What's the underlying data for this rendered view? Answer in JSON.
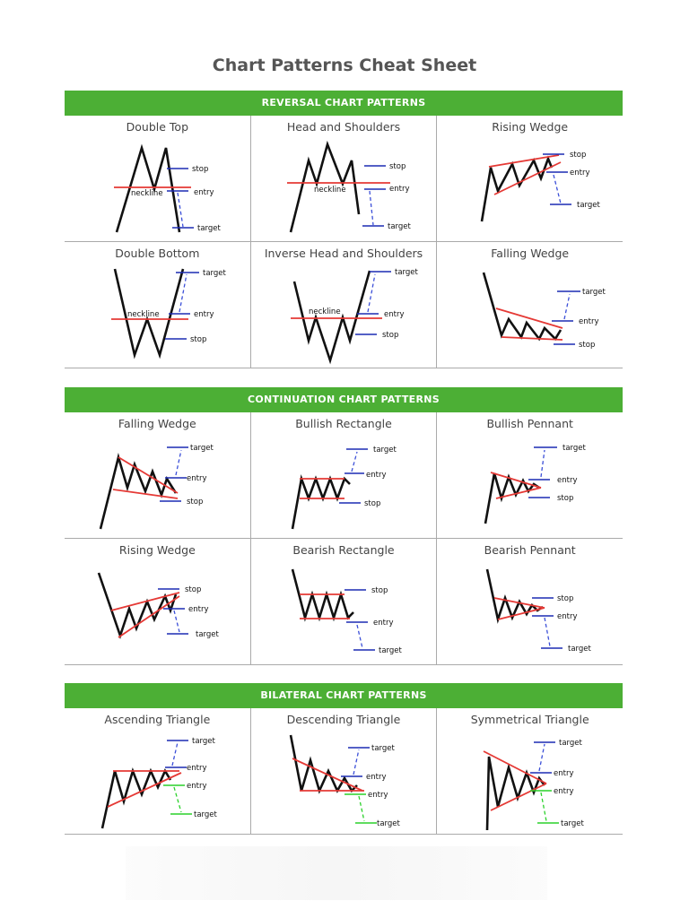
{
  "page": {
    "title": "Chart Patterns Cheat Sheet"
  },
  "sections": [
    {
      "banner": "REVERSAL CHART PATTERNS",
      "cells": [
        {
          "title": "Double Top",
          "labels": {
            "stop": "stop",
            "neckline": "neckline",
            "entry": "entry",
            "target": "target"
          }
        },
        {
          "title": "Head and Shoulders",
          "labels": {
            "stop": "stop",
            "neckline": "neckline",
            "entry": "entry",
            "target": "target"
          }
        },
        {
          "title": "Rising Wedge",
          "labels": {
            "stop": "stop",
            "entry": "entry",
            "target": "target"
          }
        },
        {
          "title": "Double Bottom",
          "labels": {
            "target": "target",
            "neckline": "neckline",
            "entry": "entry",
            "stop": "stop"
          }
        },
        {
          "title": "Inverse Head and Shoulders",
          "labels": {
            "target": "target",
            "neckline": "neckline",
            "entry": "entry",
            "stop": "stop"
          }
        },
        {
          "title": "Falling Wedge",
          "labels": {
            "target": "target",
            "entry": "entry",
            "stop": "stop"
          }
        }
      ]
    },
    {
      "banner": "CONTINUATION CHART PATTERNS",
      "cells": [
        {
          "title": "Falling Wedge",
          "labels": {
            "target": "target",
            "entry": "entry",
            "stop": "stop"
          }
        },
        {
          "title": "Bullish Rectangle",
          "labels": {
            "target": "target",
            "entry": "entry",
            "stop": "stop"
          }
        },
        {
          "title": "Bullish Pennant",
          "labels": {
            "target": "target",
            "entry": "entry",
            "stop": "stop"
          }
        },
        {
          "title": "Rising Wedge",
          "labels": {
            "stop": "stop",
            "entry": "entry",
            "target": "target"
          }
        },
        {
          "title": "Bearish Rectangle",
          "labels": {
            "stop": "stop",
            "entry": "entry",
            "target": "target"
          }
        },
        {
          "title": "Bearish Pennant",
          "labels": {
            "stop": "stop",
            "entry": "entry",
            "target": "target"
          }
        }
      ]
    },
    {
      "banner": "BILATERAL CHART PATTERNS",
      "cells": [
        {
          "title": "Ascending Triangle",
          "labels": {
            "target_up": "target",
            "entry_up": "entry",
            "entry_down": "entry",
            "target_down": "target"
          }
        },
        {
          "title": "Descending Triangle",
          "labels": {
            "target_up": "target",
            "entry_up": "entry",
            "entry_down": "entry",
            "target_down": "target"
          }
        },
        {
          "title": "Symmetrical Triangle",
          "labels": {
            "target_up": "target",
            "entry_up": "entry",
            "entry_down": "entry",
            "target_down": "target"
          }
        }
      ]
    }
  ],
  "colors": {
    "banner": "#4caf35",
    "trendline": "#e53935",
    "level": "#1c2bb3",
    "level_alt": "#2ad12a",
    "price": "#111111"
  }
}
